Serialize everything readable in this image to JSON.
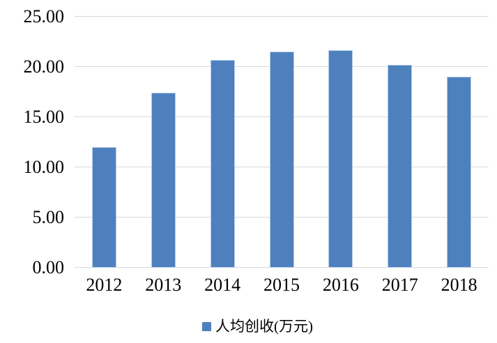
{
  "chart_data": {
    "type": "bar",
    "categories": [
      "2012",
      "2013",
      "2014",
      "2015",
      "2016",
      "2017",
      "2018"
    ],
    "series": [
      {
        "name": "人均创收(万元)",
        "values": [
          12.0,
          17.4,
          20.7,
          21.5,
          21.7,
          20.2,
          19.0
        ]
      }
    ],
    "ylim": [
      0,
      25
    ],
    "ytick_values": [
      0,
      5,
      10,
      15,
      20,
      25
    ],
    "ytick_labels": [
      "0.00",
      "5.00",
      "10.00",
      "15.00",
      "20.00",
      "25.00"
    ],
    "grid": true,
    "legend_position": "bottom",
    "legend_entries": [
      "人均创收(万元)"
    ],
    "colors": {
      "bar": "#4E80BD",
      "bar_border": "#B7CDE9",
      "grid": "#D9D9D9",
      "text": "#000000",
      "background": "#FFFFFF"
    }
  }
}
